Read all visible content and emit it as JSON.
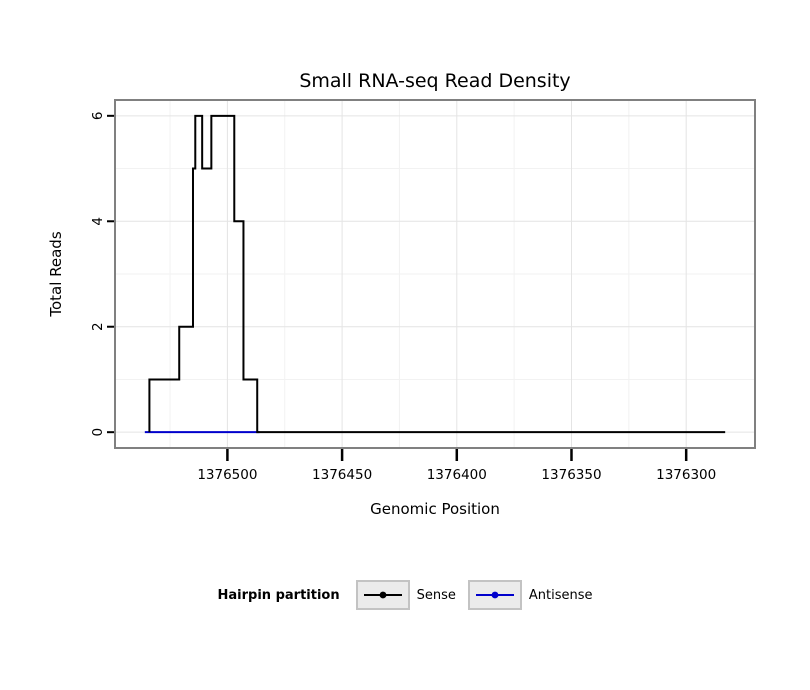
{
  "chart_data": {
    "type": "line",
    "title": "Small RNA-seq Read Density",
    "xlabel": "Genomic Position",
    "ylabel": "Total Reads",
    "x_reversed": true,
    "x_domain": [
      1376549,
      1376270
    ],
    "y_domain": [
      -0.3,
      6.3
    ],
    "x_ticks": [
      1376500,
      1376450,
      1376400,
      1376350,
      1376300
    ],
    "x_minor_ticks": [
      1376525,
      1376475,
      1376425,
      1376375,
      1376325
    ],
    "y_ticks": [
      0,
      2,
      4,
      6
    ],
    "y_minor_ticks": [
      1,
      3,
      5
    ],
    "legend_title": "Hairpin partition",
    "series": [
      {
        "name": "Sense",
        "color": "#000000",
        "points": [
          [
            1376534,
            0
          ],
          [
            1376534,
            1
          ],
          [
            1376521,
            1
          ],
          [
            1376521,
            2
          ],
          [
            1376515,
            2
          ],
          [
            1376515,
            5
          ],
          [
            1376514,
            5
          ],
          [
            1376514,
            6
          ],
          [
            1376511,
            6
          ],
          [
            1376511,
            5
          ],
          [
            1376507,
            5
          ],
          [
            1376507,
            6
          ],
          [
            1376497,
            6
          ],
          [
            1376497,
            4
          ],
          [
            1376493,
            4
          ],
          [
            1376493,
            1
          ],
          [
            1376487,
            1
          ],
          [
            1376487,
            0
          ],
          [
            1376283,
            0
          ]
        ]
      },
      {
        "name": "Antisense",
        "color": "#0000cc",
        "points": [
          [
            1376536,
            0
          ],
          [
            1376486,
            0
          ]
        ]
      }
    ],
    "colors": {
      "panel_border": "#808080",
      "grid_major": "#e4e4e4",
      "grid_minor": "#f2f2f2",
      "tick": "#000000"
    }
  }
}
